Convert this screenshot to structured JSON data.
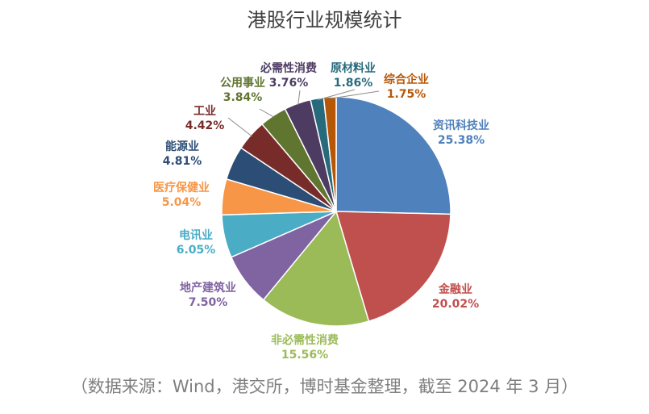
{
  "title": "港股行业规模统计",
  "source": "（数据来源：Wind，港交所，博时基金整理，截至 2024 年 3 月）",
  "chart_data": {
    "type": "pie",
    "title": "港股行业规模统计",
    "value_unit": "%",
    "slices": [
      {
        "name": "资讯科技业",
        "value": 25.38,
        "label": "25.38%",
        "color": "#4f81bd",
        "text_color": "#4f81bd"
      },
      {
        "name": "金融业",
        "value": 20.02,
        "label": "20.02%",
        "color": "#c0504d",
        "text_color": "#c0504d"
      },
      {
        "name": "非必需性消费",
        "value": 15.56,
        "label": "15.56%",
        "color": "#9bbb59",
        "text_color": "#9bbb59"
      },
      {
        "name": "地产建筑业",
        "value": 7.5,
        "label": "7.50%",
        "color": "#8064a2",
        "text_color": "#8064a2"
      },
      {
        "name": "电讯业",
        "value": 6.05,
        "label": "6.05%",
        "color": "#4bacc6",
        "text_color": "#4bacc6"
      },
      {
        "name": "医疗保健业",
        "value": 5.04,
        "label": "5.04%",
        "color": "#f79646",
        "text_color": "#f79646"
      },
      {
        "name": "能源业",
        "value": 4.81,
        "label": "4.81%",
        "color": "#2c4d75",
        "text_color": "#2c4d75"
      },
      {
        "name": "工业",
        "value": 4.42,
        "label": "4.42%",
        "color": "#772c2a",
        "text_color": "#772c2a"
      },
      {
        "name": "公用事业",
        "value": 3.84,
        "label": "3.84%",
        "color": "#5f7530",
        "text_color": "#5f7530"
      },
      {
        "name": "必需性消费",
        "value": 3.76,
        "label": "3.76%",
        "color": "#4d3b62",
        "text_color": "#4d3b62"
      },
      {
        "name": "原材料业",
        "value": 1.86,
        "label": "1.86%",
        "color": "#276a7c",
        "text_color": "#276a7c"
      },
      {
        "name": "综合企业",
        "value": 1.75,
        "label": "1.75%",
        "color": "#b65708",
        "text_color": "#b65708"
      }
    ]
  }
}
